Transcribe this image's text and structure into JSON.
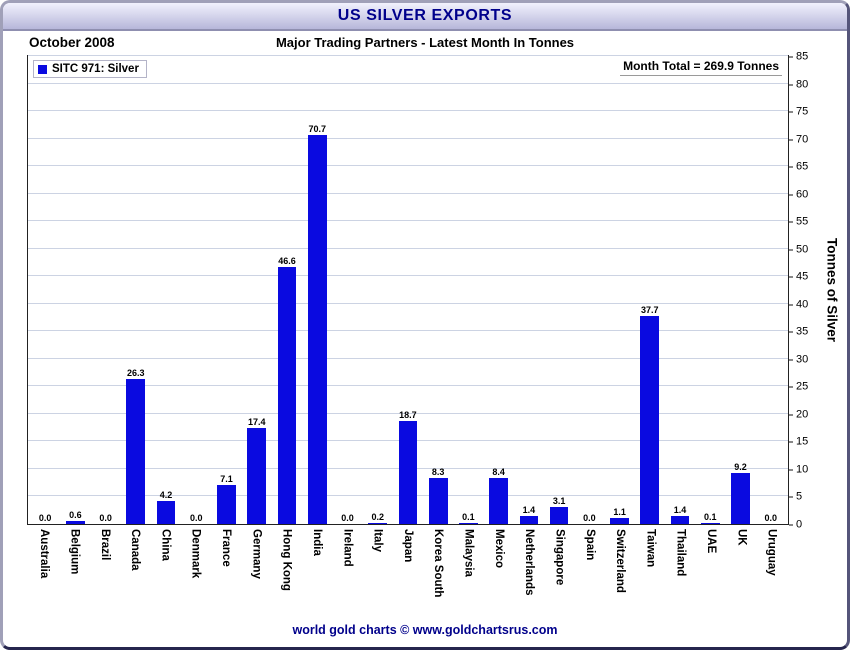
{
  "title_bar": {
    "title": "US SILVER EXPORTS"
  },
  "header": {
    "date": "October 2008",
    "subtitle": "Major Trading Partners - Latest Month In Tonnes"
  },
  "legend": {
    "label": "SITC 971: Silver",
    "swatch_color": "#0a0ae0"
  },
  "annotations": {
    "month_total": "Month Total = 269.9 Tonnes"
  },
  "footer": {
    "credit": "world gold charts © www.goldchartsrus.com"
  },
  "colors": {
    "bar_blue": "#0a0ae0",
    "navy_text": "#00008b",
    "grid_line": "#ccd3e3",
    "titlebar_gradient_top": "#f1f1fd",
    "titlebar_gradient_bottom": "#b7b7da"
  },
  "chart_data": {
    "type": "bar",
    "title": "US SILVER EXPORTS",
    "subtitle": "Major Trading Partners - Latest Month In Tonnes",
    "categories": [
      "Australia",
      "Belgium",
      "Brazil",
      "Canada",
      "China",
      "Denmark",
      "France",
      "Germany",
      "Hong Kong",
      "India",
      "Ireland",
      "Italy",
      "Japan",
      "Korea South",
      "Malaysia",
      "Mexico",
      "Netherlands",
      "Singapore",
      "Spain",
      "Switzerland",
      "Taiwan",
      "Thailand",
      "UAE",
      "UK",
      "Uruguay"
    ],
    "values": [
      0.0,
      0.6,
      0.0,
      26.3,
      4.2,
      0.0,
      7.1,
      17.4,
      46.6,
      70.7,
      0.0,
      0.2,
      18.7,
      8.3,
      0.1,
      8.4,
      1.4,
      3.1,
      0.0,
      1.1,
      37.7,
      1.4,
      0.1,
      9.2,
      0.0
    ],
    "xlabel": "",
    "ylabel": "Tonnes of Silver",
    "ylim": [
      0,
      85
    ],
    "ytick_step": 5,
    "grid": "horizontal",
    "legend": [
      "SITC 971: Silver"
    ],
    "legend_position": "top-left",
    "bar_color": "#0a0ae0",
    "value_label_format": "one-decimal"
  }
}
